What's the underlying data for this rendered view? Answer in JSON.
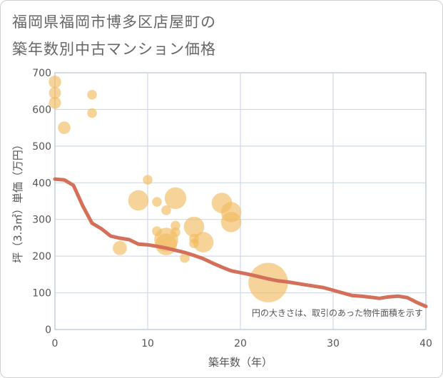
{
  "title_line1": "福岡県福岡市博多区店屋町の",
  "title_line2": "築年数別中古マンション価格",
  "chart_data": {
    "type": "scatter",
    "title": "福岡県福岡市博多区店屋町の築年数別中古マンション価格",
    "xlabel": "築年数（年）",
    "ylabel": "坪（3.3㎡）単価（万円）",
    "xlim": [
      0,
      40
    ],
    "ylim": [
      0,
      700
    ],
    "x_ticks": [
      0,
      10,
      20,
      30,
      40
    ],
    "y_ticks": [
      0,
      100,
      200,
      300,
      400,
      500,
      600,
      700
    ],
    "grid": true,
    "note": "円の大きさは、取引のあった物件面積を示す",
    "colors": {
      "bubble": "#f0b95a",
      "line": "#d4705a",
      "grid": "#c9d3e3",
      "plot_border": "#aab4c4"
    },
    "bubbles": [
      {
        "x": 0,
        "y": 675,
        "size": 30
      },
      {
        "x": 0,
        "y": 645,
        "size": 28
      },
      {
        "x": 0,
        "y": 618,
        "size": 28
      },
      {
        "x": 1,
        "y": 550,
        "size": 30
      },
      {
        "x": 4,
        "y": 640,
        "size": 18
      },
      {
        "x": 4,
        "y": 590,
        "size": 18
      },
      {
        "x": 7,
        "y": 222,
        "size": 38
      },
      {
        "x": 9,
        "y": 352,
        "size": 80
      },
      {
        "x": 10,
        "y": 408,
        "size": 18
      },
      {
        "x": 11,
        "y": 348,
        "size": 18
      },
      {
        "x": 11,
        "y": 268,
        "size": 18
      },
      {
        "x": 12,
        "y": 325,
        "size": 18
      },
      {
        "x": 12,
        "y": 245,
        "size": 110
      },
      {
        "x": 12,
        "y": 232,
        "size": 90
      },
      {
        "x": 13,
        "y": 358,
        "size": 90
      },
      {
        "x": 13,
        "y": 283,
        "size": 18
      },
      {
        "x": 13,
        "y": 265,
        "size": 18
      },
      {
        "x": 14,
        "y": 195,
        "size": 18
      },
      {
        "x": 15,
        "y": 280,
        "size": 80
      },
      {
        "x": 15,
        "y": 248,
        "size": 18
      },
      {
        "x": 15,
        "y": 235,
        "size": 18
      },
      {
        "x": 16,
        "y": 238,
        "size": 80
      },
      {
        "x": 18,
        "y": 345,
        "size": 80
      },
      {
        "x": 19,
        "y": 320,
        "size": 80
      },
      {
        "x": 19,
        "y": 293,
        "size": 80
      },
      {
        "x": 23,
        "y": 128,
        "size": 300
      }
    ],
    "trend": {
      "x": [
        0,
        1,
        2,
        3,
        4,
        5,
        6,
        7,
        8,
        9,
        10,
        11,
        12,
        13,
        14,
        15,
        16,
        17,
        18,
        19,
        20,
        21,
        22,
        23,
        24,
        25,
        26,
        27,
        28,
        29,
        30,
        31,
        32,
        33,
        34,
        35,
        36,
        37,
        38,
        39,
        40
      ],
      "y": [
        410,
        408,
        393,
        337,
        290,
        275,
        255,
        249,
        245,
        233,
        231,
        227,
        222,
        216,
        210,
        202,
        193,
        181,
        170,
        160,
        155,
        150,
        144,
        138,
        133,
        130,
        126,
        122,
        118,
        114,
        107,
        100,
        93,
        91,
        88,
        85,
        89,
        91,
        87,
        74,
        63
      ]
    }
  }
}
